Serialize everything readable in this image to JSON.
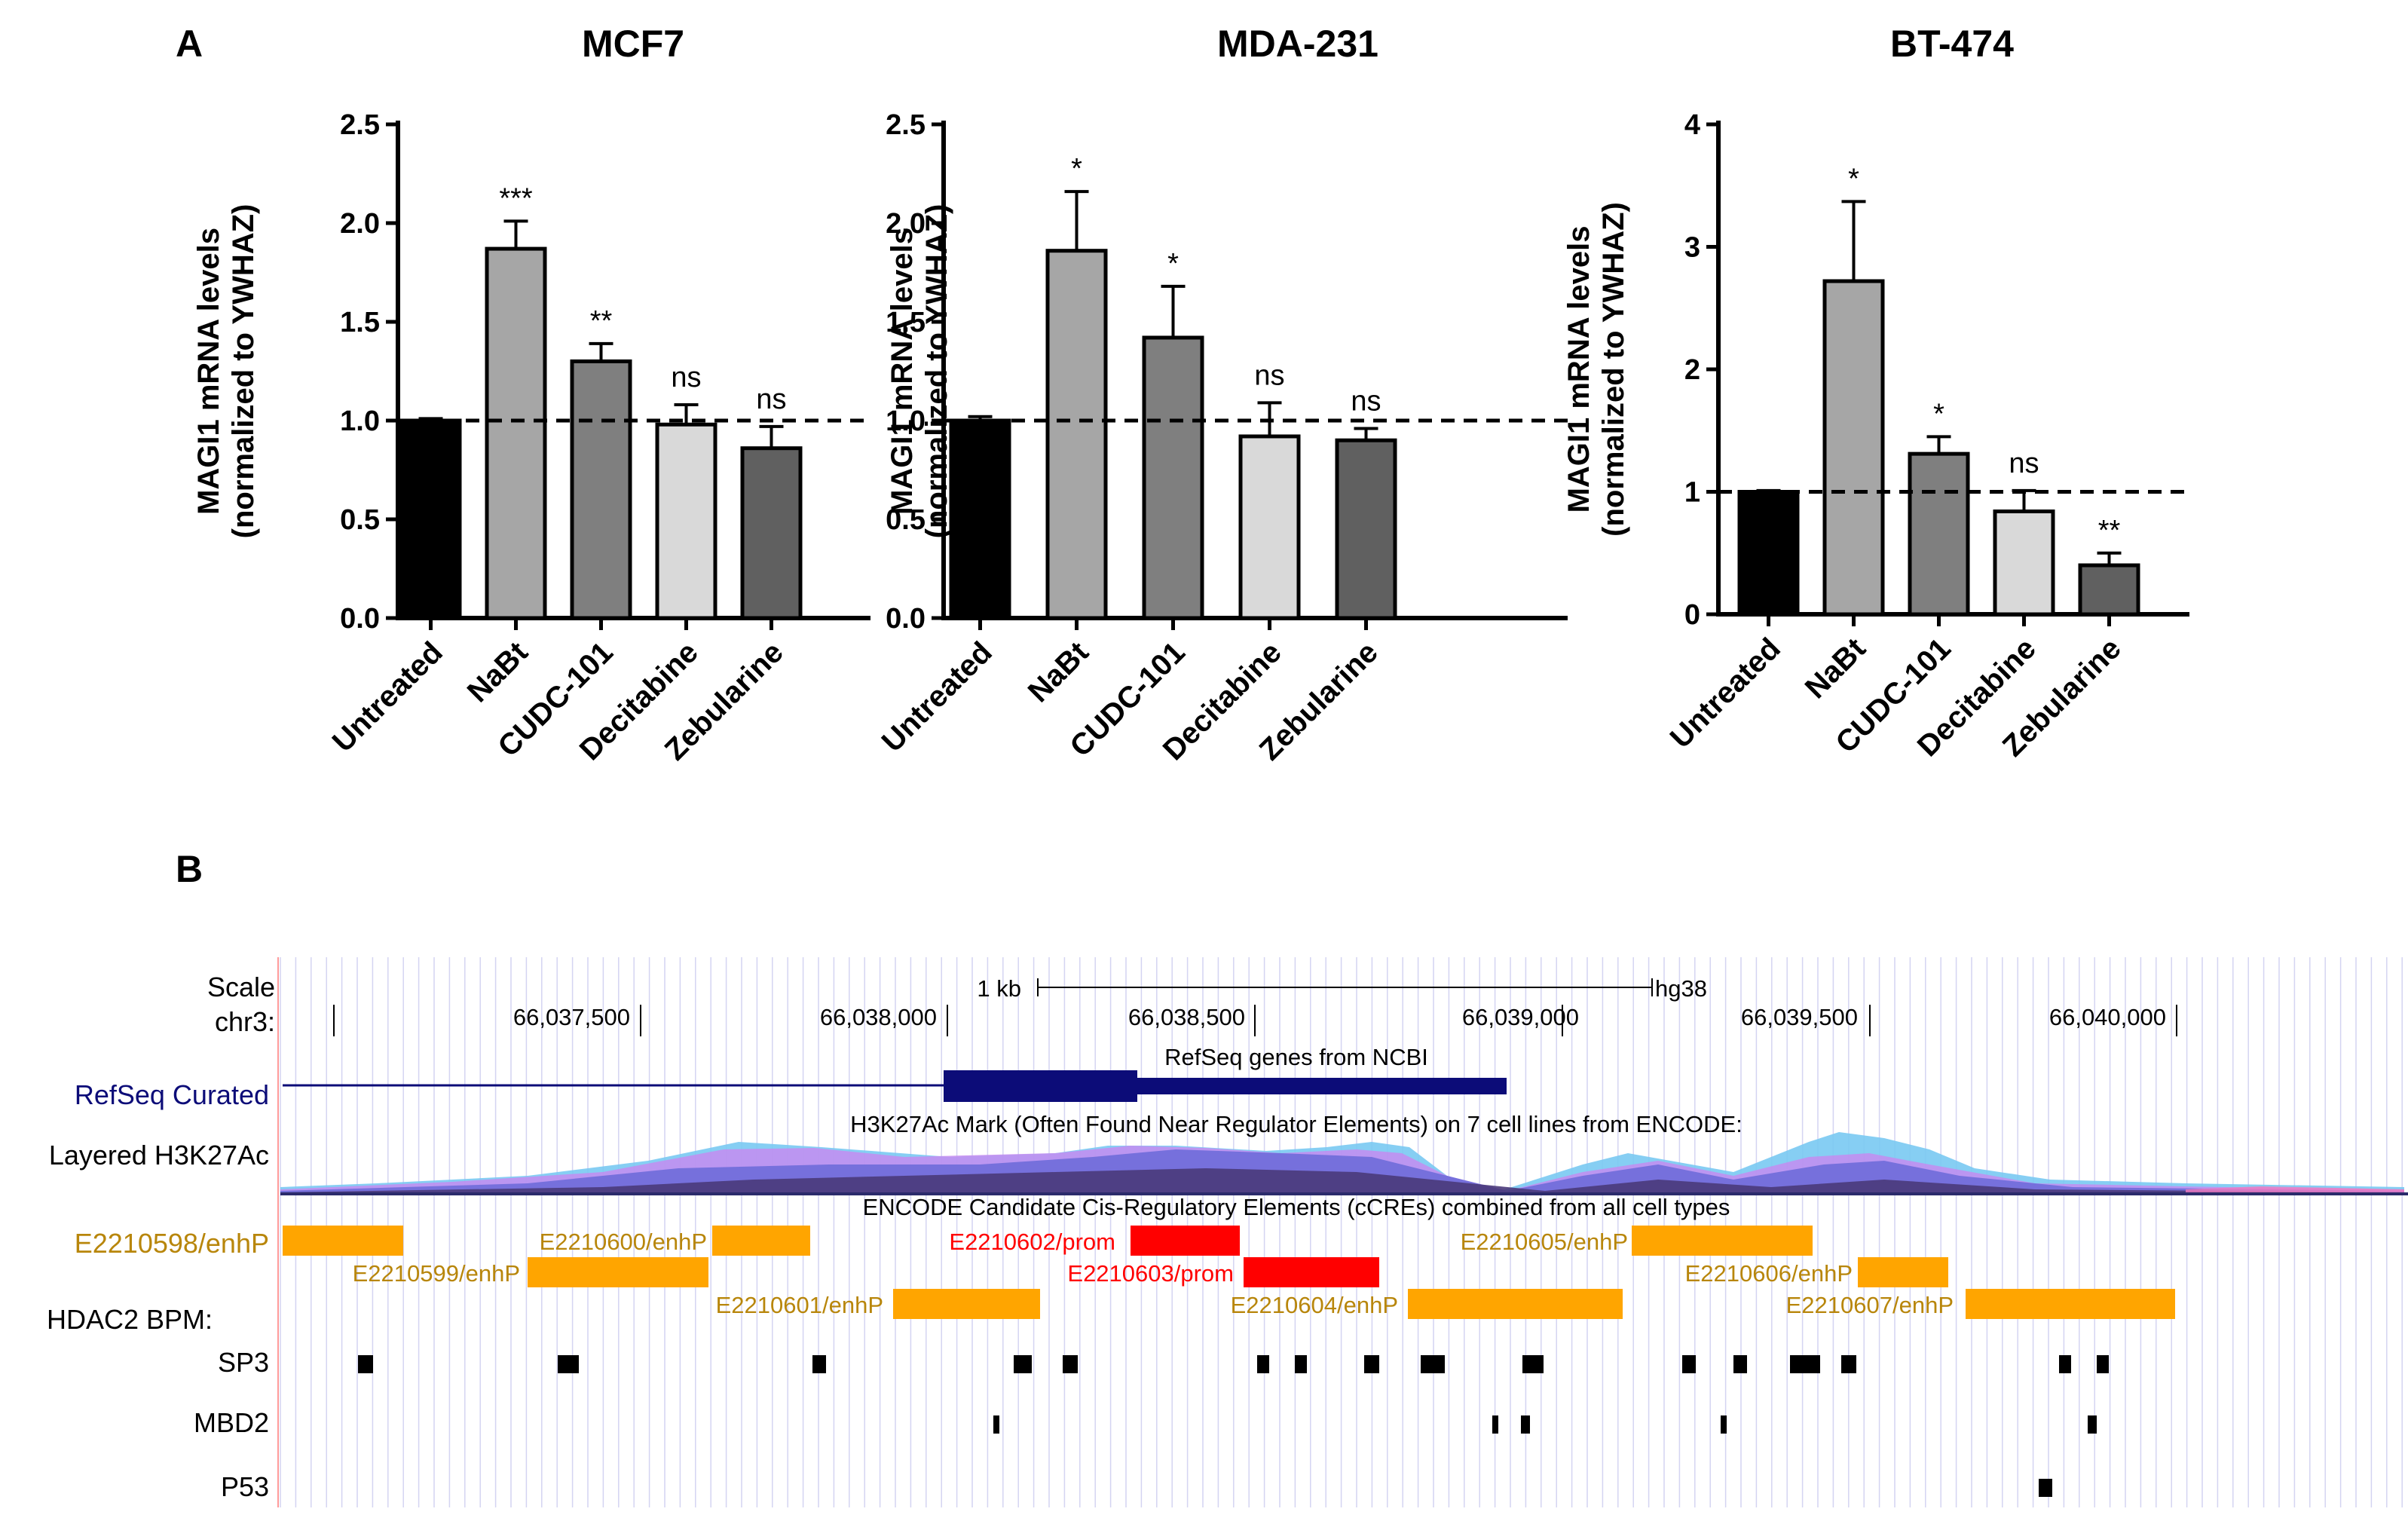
{
  "panel_a_label": "A",
  "panel_b_label": "B",
  "chart_data": [
    {
      "type": "bar",
      "title": "MCF7",
      "categories": [
        "Untreated",
        "NaBt",
        "CUDC-101",
        "Decitabine",
        "Zebularine"
      ],
      "values": [
        1.0,
        1.87,
        1.3,
        0.98,
        0.86
      ],
      "errors": [
        0.01,
        0.14,
        0.09,
        0.1,
        0.11
      ],
      "significance": [
        "",
        "***",
        "**",
        "ns",
        "ns"
      ],
      "bar_colors": [
        "#000000",
        "#a6a6a6",
        "#7f7f7f",
        "#d9d9d9",
        "#606060"
      ],
      "ylabel_line1": "MAGI1 mRNA levels",
      "ylabel_line2": "(normalized to YWHAZ)",
      "ylim": [
        0,
        2.5
      ],
      "yticks": [
        "0.0",
        "0.5",
        "1.0",
        "1.5",
        "2.0",
        "2.5"
      ],
      "reference_line": 1.0
    },
    {
      "type": "bar",
      "title": "MDA-231",
      "categories": [
        "Untreated",
        "NaBt",
        "CUDC-101",
        "Decitabine",
        "Zebularine"
      ],
      "values": [
        1.0,
        1.86,
        1.42,
        0.92,
        0.9
      ],
      "errors": [
        0.02,
        0.3,
        0.26,
        0.17,
        0.06
      ],
      "significance": [
        "",
        "*",
        "*",
        "ns",
        "ns"
      ],
      "bar_colors": [
        "#000000",
        "#a6a6a6",
        "#7f7f7f",
        "#d9d9d9",
        "#606060"
      ],
      "ylabel_line1": "MAGI1 mRNA levels",
      "ylabel_line2": "(normalized to YWHAZ)",
      "ylim": [
        0,
        2.5
      ],
      "yticks": [
        "0.0",
        "0.5",
        "1.0",
        "1.5",
        "2.0",
        "2.5"
      ],
      "reference_line": 1.0
    },
    {
      "type": "bar",
      "title": "BT-474",
      "categories": [
        "Untreated",
        "NaBt",
        "CUDC-101",
        "Decitabine",
        "Zebularine"
      ],
      "values": [
        1.0,
        2.72,
        1.31,
        0.84,
        0.4
      ],
      "errors": [
        0.01,
        0.65,
        0.14,
        0.17,
        0.1
      ],
      "significance": [
        "",
        "*",
        "*",
        "ns",
        "**"
      ],
      "bar_colors": [
        "#000000",
        "#a6a6a6",
        "#7f7f7f",
        "#d9d9d9",
        "#606060"
      ],
      "ylabel_line1": "MAGI1 mRNA levels",
      "ylabel_line2": "(normalized to YWHAZ)",
      "ylim": [
        0,
        4
      ],
      "yticks": [
        "0",
        "1",
        "2",
        "3",
        "4"
      ],
      "reference_line": 1.0
    }
  ],
  "browser": {
    "scale_label": "Scale",
    "chr_label": "chr3:",
    "scale_bar_label": "1 kb",
    "assembly": "hg38",
    "coordinates": [
      "66,037,500",
      "66,038,000",
      "66,038,500",
      "66,039,000",
      "66,039,500",
      "66,040,000"
    ],
    "refseq_label": "RefSeq Curated",
    "refseq_title": "RefSeq genes from NCBI",
    "h3k27ac_title": "H3K27Ac Mark (Often Found Near Regulator Elements) on 7 cell lines from ENCODE:",
    "h3k27ac_label": "Layered H3K27Ac",
    "ccre_title": "ENCODE Candidate Cis-Regulatory Elements (cCREs) combined from all cell types",
    "hdac2_label": "HDAC2 BPM:",
    "tracks": [
      "SP3",
      "MBD2",
      "P53"
    ],
    "elements": [
      {
        "label": "E2210598/enhP",
        "type": "enhP"
      },
      {
        "label": "E2210599/enhP",
        "type": "enhP"
      },
      {
        "label": "E2210600/enhP",
        "type": "enhP"
      },
      {
        "label": "E2210601/enhP",
        "type": "enhP"
      },
      {
        "label": "E2210602/prom",
        "type": "prom"
      },
      {
        "label": "E2210603/prom",
        "type": "prom"
      },
      {
        "label": "E2210604/enhP",
        "type": "enhP"
      },
      {
        "label": "E2210605/enhP",
        "type": "enhP"
      },
      {
        "label": "E2210606/enhP",
        "type": "enhP"
      },
      {
        "label": "E2210607/enhP",
        "type": "enhP"
      }
    ],
    "colors": {
      "enhP": "#ffa500",
      "enhP_text": "#b8860b",
      "prom": "#ff0000",
      "refseq": "#0c0c78",
      "grid": "#d4d4f2"
    }
  }
}
